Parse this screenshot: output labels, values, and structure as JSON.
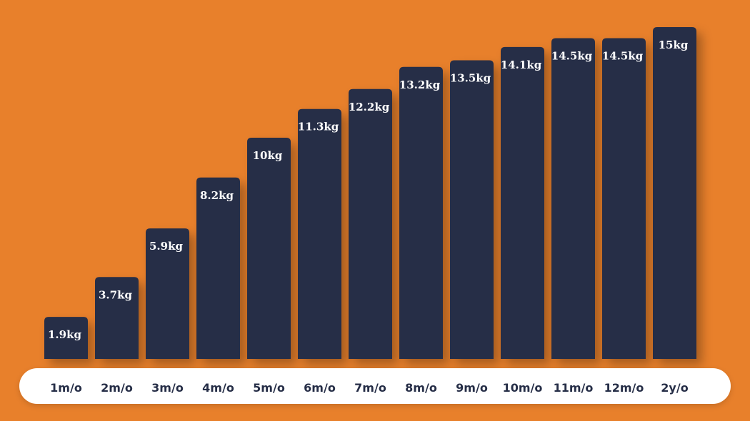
{
  "colors": {
    "background": "#E8802B",
    "bar": "#262E47",
    "bar_label": "#FFFFFF",
    "axis_band": "#FFFFFF",
    "tick_label": "#262E47"
  },
  "chart_data": {
    "type": "bar",
    "categories": [
      "1m/o",
      "2m/o",
      "3m/o",
      "4m/o",
      "5m/o",
      "6m/o",
      "7m/o",
      "8m/o",
      "9m/o",
      "10m/o",
      "11m/o",
      "12m/o",
      "2y/o"
    ],
    "values": [
      1.9,
      3.7,
      5.9,
      8.2,
      10,
      11.3,
      12.2,
      13.2,
      13.5,
      14.1,
      14.5,
      14.5,
      15
    ],
    "data_labels": [
      "1.9kg",
      "3.7kg",
      "5.9kg",
      "8.2kg",
      "10kg",
      "11.3kg",
      "12.2kg",
      "13.2kg",
      "13.5kg",
      "14.1kg",
      "14.5kg",
      "14.5kg",
      "15kg"
    ],
    "ylim": [
      0,
      15
    ],
    "grid": false,
    "title": "",
    "xlabel": "",
    "ylabel": ""
  }
}
